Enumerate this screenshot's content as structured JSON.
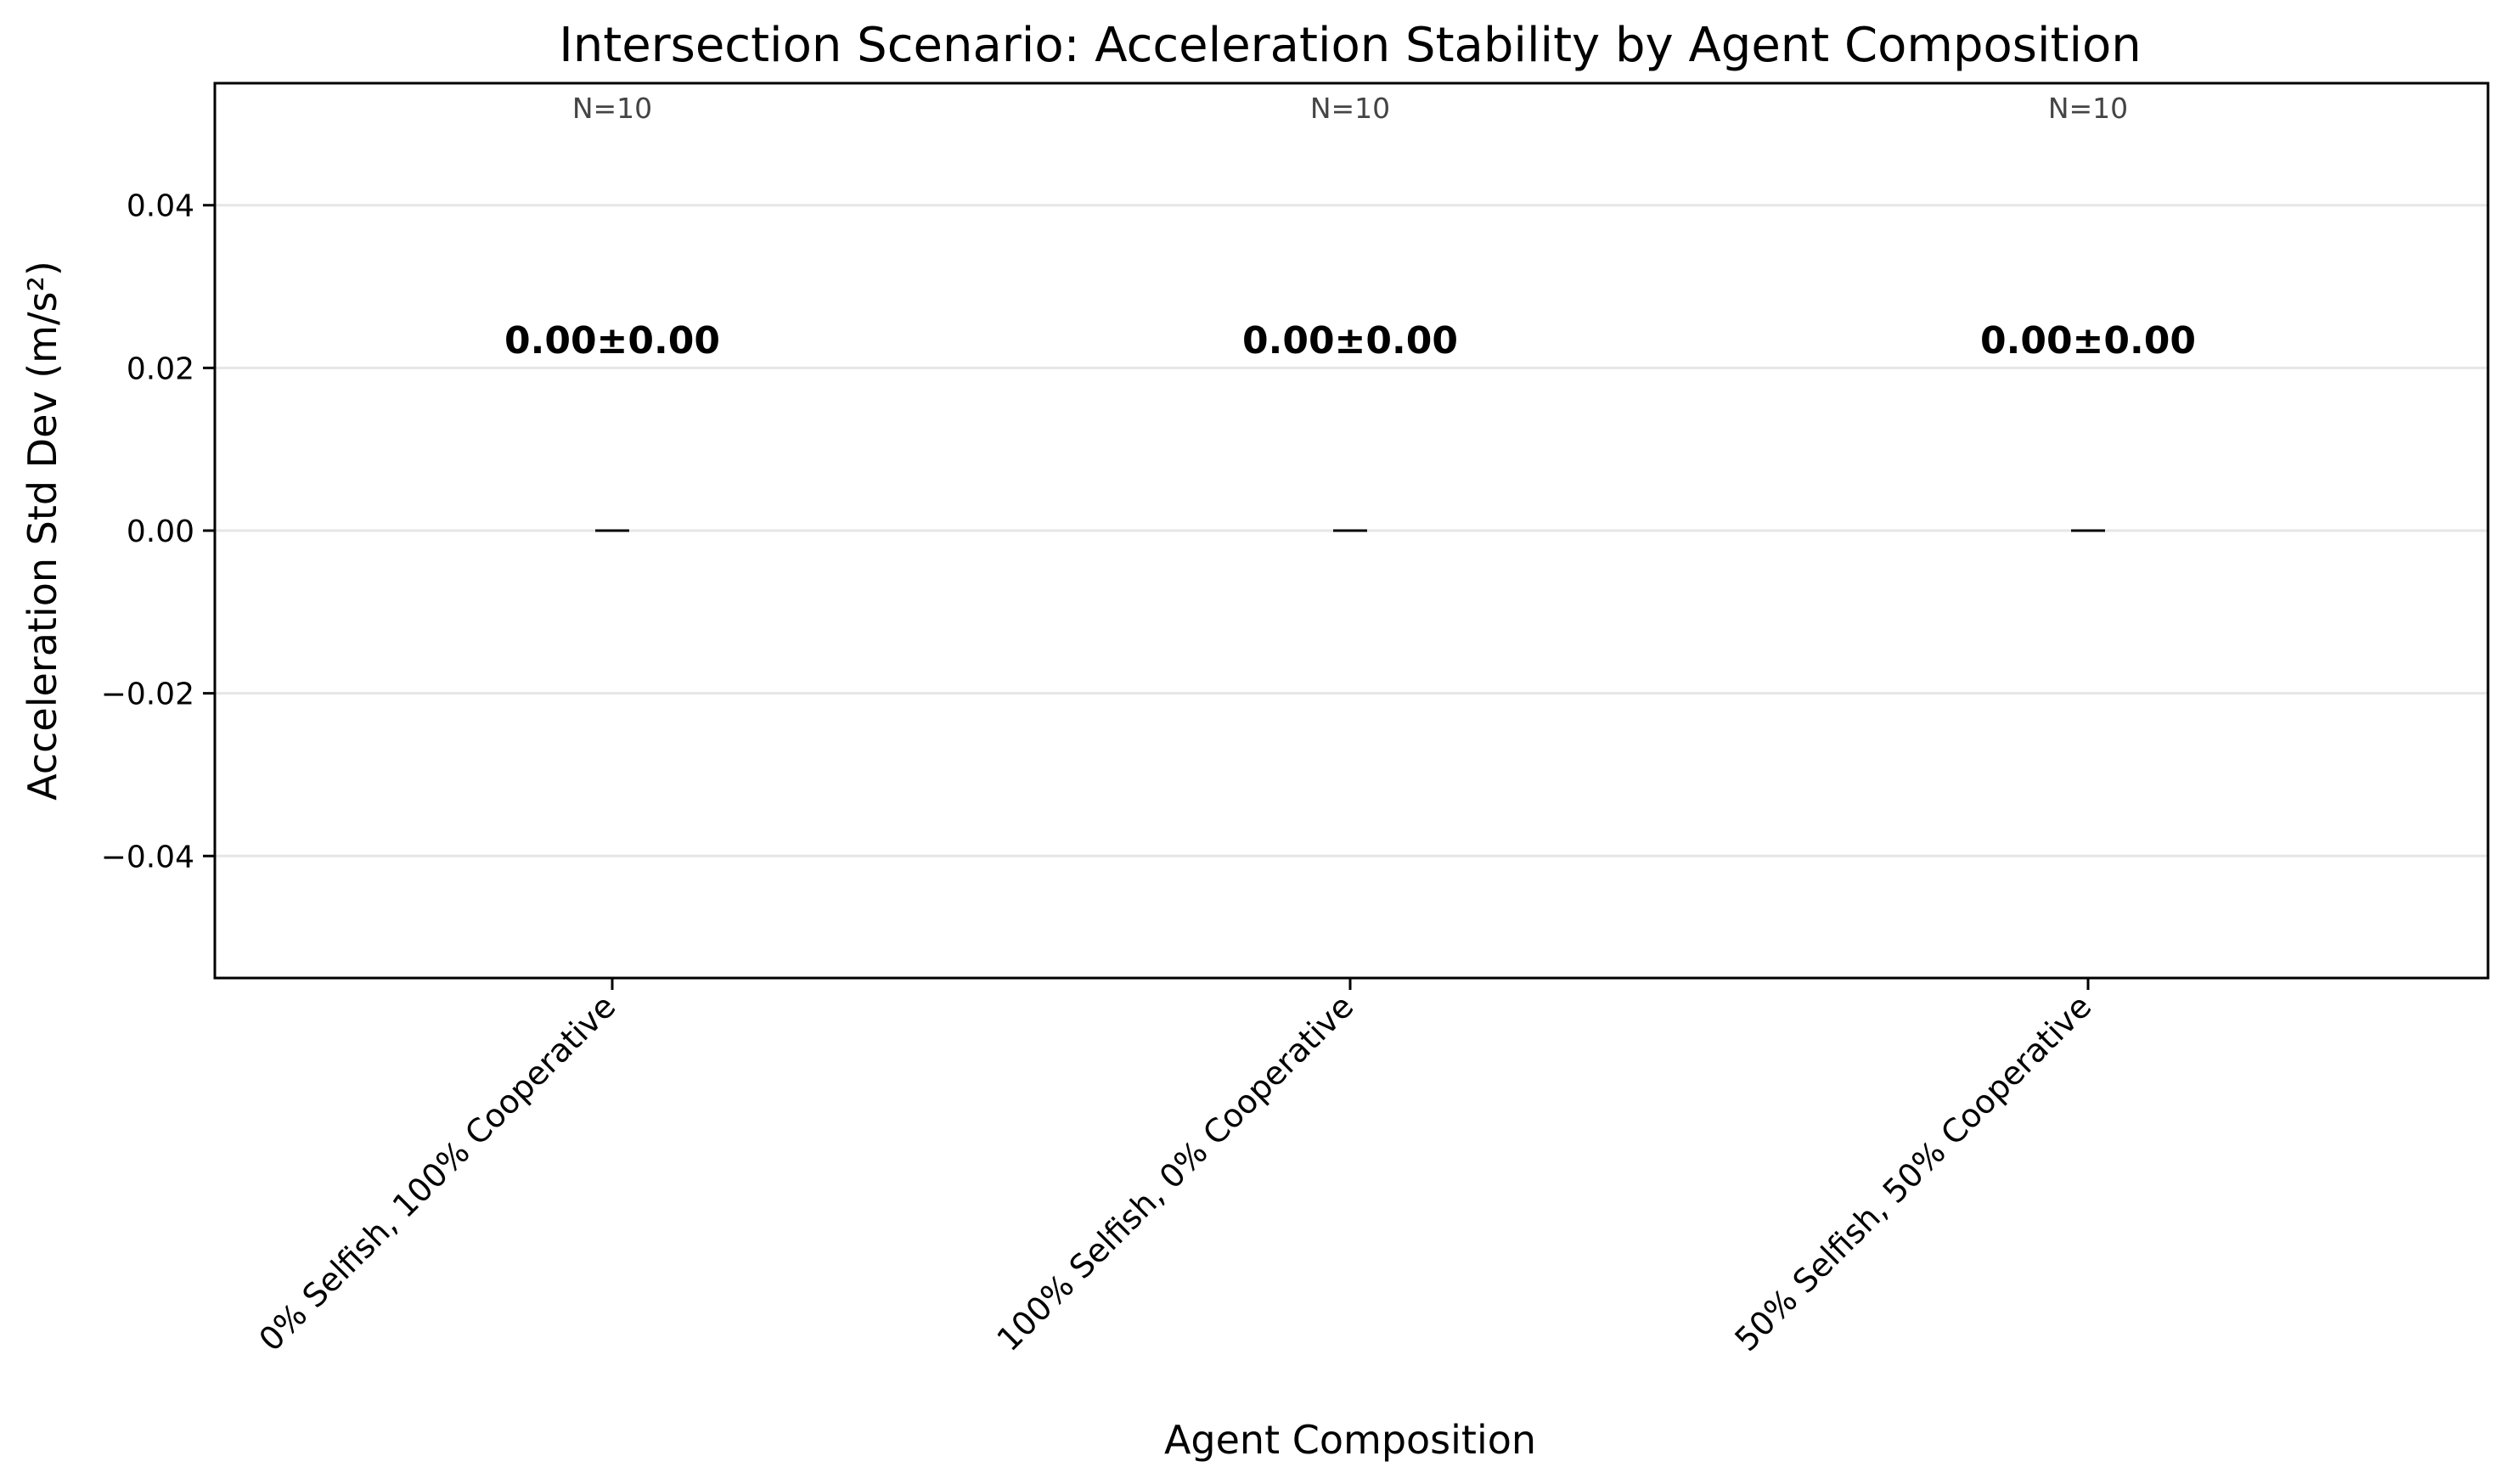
{
  "chart_data": {
    "type": "bar",
    "title": "Intersection Scenario: Acceleration Stability by Agent Composition",
    "xlabel": "Agent Composition",
    "ylabel": "Acceleration Std Dev (m/s²)",
    "ylim": [
      -0.055,
      0.055
    ],
    "yticks": [
      -0.04,
      -0.02,
      0.0,
      0.02,
      0.04
    ],
    "ytick_labels": [
      "−0.04",
      "−0.02",
      "0.00",
      "0.02",
      "0.04"
    ],
    "grid": "horizontal",
    "categories": [
      "0% Selfish, 100% Cooperative",
      "100% Selfish, 0% Cooperative",
      "50% Selfish, 50% Cooperative"
    ],
    "values": [
      0.0,
      0.0,
      0.0
    ],
    "errors": [
      0.0,
      0.0,
      0.0
    ],
    "value_labels": [
      "0.00±0.00",
      "0.00±0.00",
      "0.00±0.00"
    ],
    "n_labels": [
      "N=10",
      "N=10",
      "N=10"
    ],
    "colors": {
      "bar": "#000000",
      "grid": "#e6e6e6",
      "n_text": "#444444"
    }
  }
}
